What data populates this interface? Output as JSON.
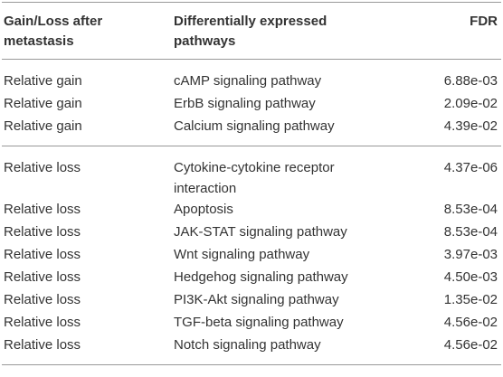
{
  "table": {
    "header": [
      "Gain/Loss after metastasis",
      "Differentially expressed pathways",
      "FDR"
    ],
    "groups": [
      {
        "rows": [
          [
            "Relative gain",
            "cAMP signaling pathway",
            "6.88e-03"
          ],
          [
            "Relative gain",
            "ErbB signaling pathway",
            "2.09e-02"
          ],
          [
            "Relative gain",
            "Calcium signaling pathway",
            "4.39e-02"
          ]
        ]
      },
      {
        "rows": [
          [
            "Relative loss",
            "Cytokine-cytokine receptor interaction",
            "4.37e-06"
          ],
          [
            "Relative loss",
            "Apoptosis",
            "8.53e-04"
          ],
          [
            "Relative loss",
            "JAK-STAT signaling pathway",
            "8.53e-04"
          ],
          [
            "Relative loss",
            "Wnt signaling pathway",
            "3.97e-03"
          ],
          [
            "Relative loss",
            "Hedgehog signaling pathway",
            "4.50e-03"
          ],
          [
            "Relative loss",
            "PI3K-Akt signaling pathway",
            "1.35e-02"
          ],
          [
            "Relative loss",
            "TGF-beta signaling pathway",
            "4.56e-02"
          ],
          [
            "Relative loss",
            "Notch signaling pathway",
            "4.56e-02"
          ]
        ]
      }
    ]
  }
}
